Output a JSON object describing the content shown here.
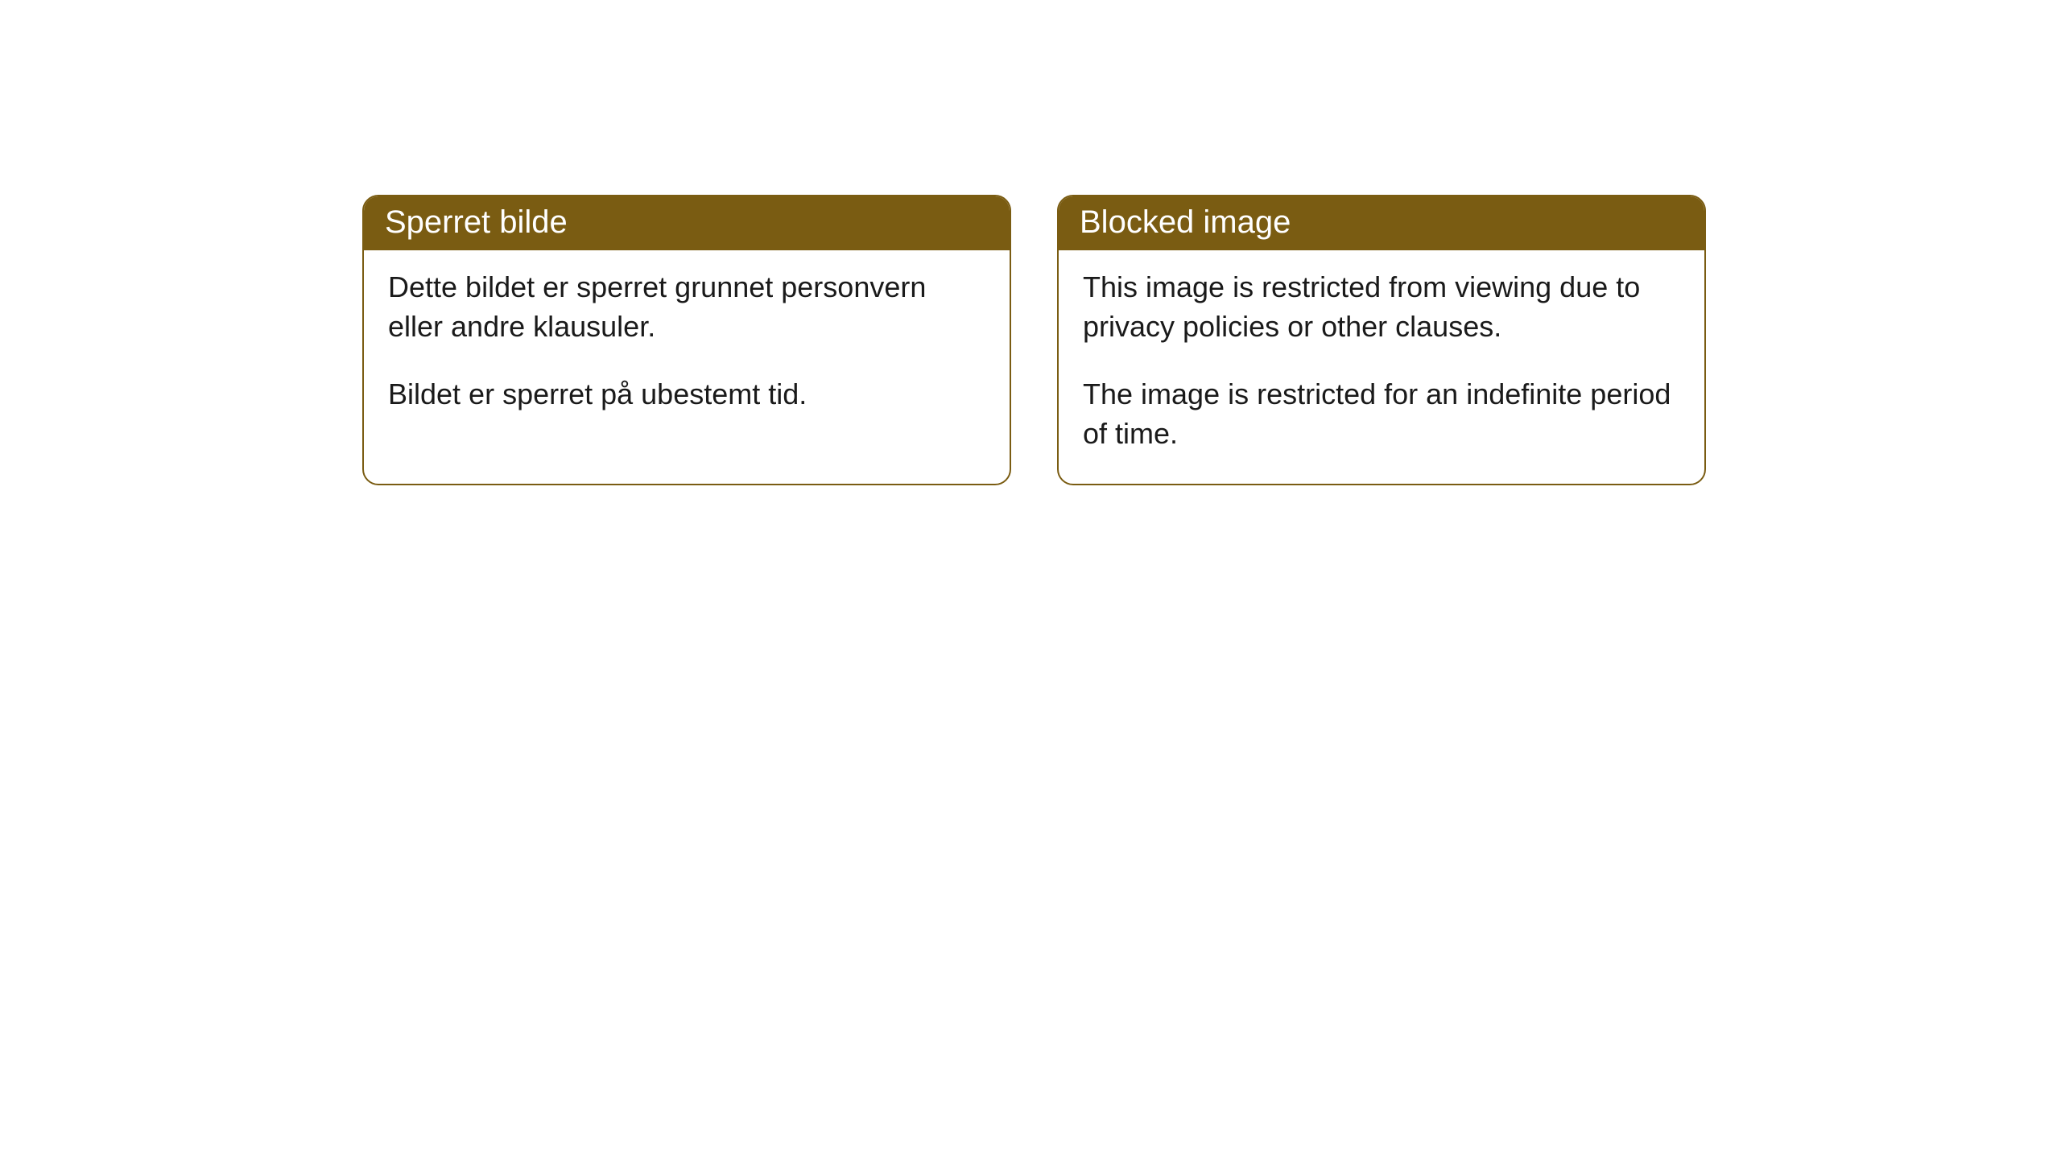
{
  "cards": {
    "norwegian": {
      "title": "Sperret bilde",
      "paragraph1": "Dette bildet er sperret grunnet personvern eller andre klausuler.",
      "paragraph2": "Bildet er sperret på ubestemt tid."
    },
    "english": {
      "title": "Blocked image",
      "paragraph1": "This image is restricted from viewing due to privacy policies or other clauses.",
      "paragraph2": "The image is restricted for an indefinite period of time."
    }
  },
  "colors": {
    "header_bg": "#7a5c12",
    "border": "#7a5c12",
    "header_text": "#ffffff",
    "body_text": "#1a1a1a",
    "card_bg": "#ffffff",
    "page_bg": "#ffffff"
  }
}
